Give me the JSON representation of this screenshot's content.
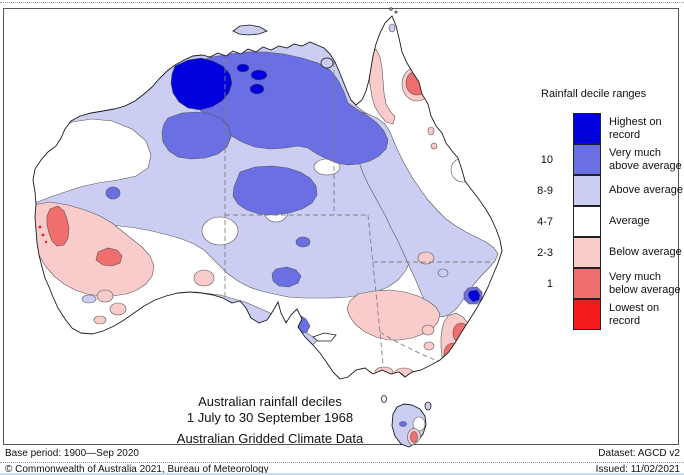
{
  "palette": {
    "highest": "#0000DE",
    "very_much_above": "#6A6FE3",
    "above": "#CBCEF2",
    "average": "#FFFFFF",
    "below": "#F9CBCB",
    "very_much_below": "#F06E6E",
    "lowest": "#F31B1B"
  },
  "legend": {
    "title": "Rainfall decile ranges",
    "items": [
      {
        "range": "",
        "key": "highest",
        "label": "Highest on\nrecord"
      },
      {
        "range": "10",
        "key": "very_much_above",
        "label": "Very much\nabove average"
      },
      {
        "range": "8-9",
        "key": "above",
        "label": "Above average"
      },
      {
        "range": "4-7",
        "key": "average",
        "label": "Average"
      },
      {
        "range": "2-3",
        "key": "below",
        "label": "Below average"
      },
      {
        "range": "1",
        "key": "very_much_below",
        "label": "Very much\nbelow average"
      },
      {
        "range": "",
        "key": "lowest",
        "label": "Lowest on\nrecord"
      }
    ]
  },
  "titles": {
    "line1": "Australian rainfall deciles",
    "line2": "1 July to 30 September 1968",
    "line3": "Australian Gridded Climate Data"
  },
  "footer": {
    "base_period": "Base period: 1900—Sep 2020",
    "dataset": "Dataset: AGCD v2",
    "copyright": "© Commonwealth of Australia 2021, Bureau of Meteorology",
    "issued": "Issued: 11/02/2021"
  },
  "map": {
    "regions": [
      {
        "name": "kimberley",
        "decile": "highest"
      },
      {
        "name": "top-end-band",
        "decile": "very_much_above"
      },
      {
        "name": "central-australia",
        "decile": "very_much_above"
      },
      {
        "name": "north-and-centre",
        "decile": "above"
      },
      {
        "name": "west-coast",
        "decile": "below"
      },
      {
        "name": "gascoyne-core",
        "decile": "very_much_below"
      },
      {
        "name": "cairns-core",
        "decile": "very_much_below"
      },
      {
        "name": "nsw-coast-cores",
        "decile": "very_much_below"
      },
      {
        "name": "nsw-inland",
        "decile": "below"
      },
      {
        "name": "cape-york-west",
        "decile": "below"
      },
      {
        "name": "tasmania",
        "decile": "above"
      }
    ]
  }
}
